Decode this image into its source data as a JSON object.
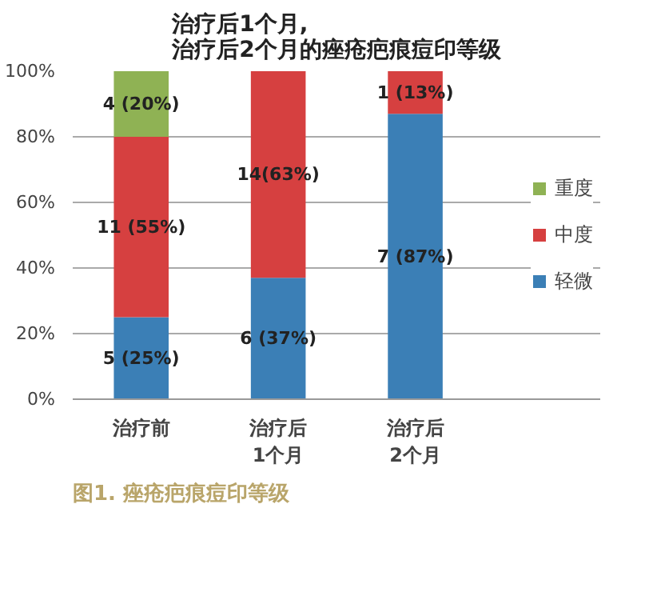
{
  "chart_data": {
    "type": "bar",
    "stacked": true,
    "title": "治疗后1个月,\n治疗后2个月的痤疮疤痕痘印等级",
    "categories": [
      "治疗前",
      "治疗后\n1个月",
      "治疗后\n2个月"
    ],
    "series": [
      {
        "name": "轻微",
        "color": "#3b7fb6",
        "values": [
          25,
          37,
          87
        ],
        "value_labels": [
          "5 (25%)",
          "6 (37%)",
          "7 (87%)"
        ]
      },
      {
        "name": "中度",
        "color": "#d64040",
        "values": [
          55,
          63,
          13
        ],
        "value_labels": [
          "11 (55%)",
          "14(63%)",
          "1 (13%)"
        ]
      },
      {
        "name": "重度",
        "color": "#8fb254",
        "values": [
          20,
          null,
          null
        ],
        "value_labels": [
          "4 (20%)",
          null,
          null
        ]
      }
    ],
    "ylim": [
      0,
      100
    ],
    "yticks": [
      {
        "value": 0,
        "label": "0%"
      },
      {
        "value": 20,
        "label": "20%"
      },
      {
        "value": 40,
        "label": "40%"
      },
      {
        "value": 60,
        "label": "60%"
      },
      {
        "value": 80,
        "label": "80%"
      },
      {
        "value": 100,
        "label": "100%"
      }
    ],
    "grid": "y",
    "legend": "right",
    "annotations": [
      "图1. 痤疮疤痕痘印等级"
    ]
  }
}
